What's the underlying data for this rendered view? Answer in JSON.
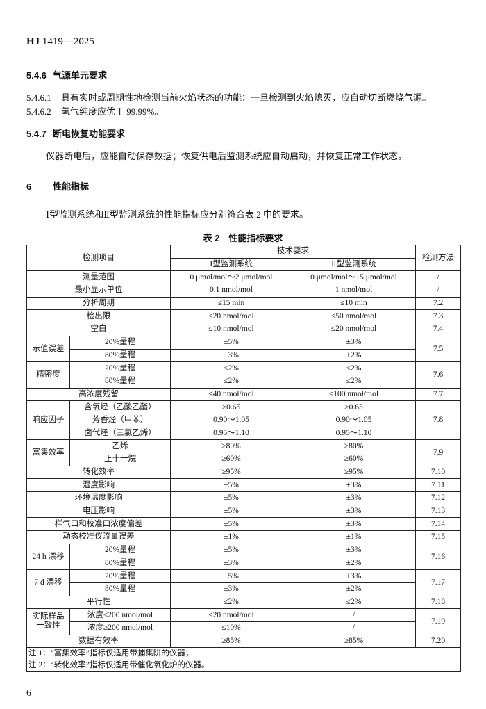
{
  "header": {
    "code": "HJ",
    "number": "1419—2025"
  },
  "blocks": [
    {
      "number": "5.4.6",
      "title": "气源单元要求"
    },
    {
      "number": "5.4.6.1",
      "text": "具有实时或周期性地检测当前火焰状态的功能：一旦检测到火焰熄灭，应自动切断燃烧气源。"
    },
    {
      "number": "5.4.6.2",
      "text": "氢气纯度应优于 99.99%。"
    },
    {
      "number": "5.4.7",
      "title": "断电恢复功能要求"
    },
    {
      "text": "仪器断电后，应能自动保存数据；恢复供电后监测系统应自动启动，并恢复正常工作状态。"
    },
    {
      "number": "6",
      "title": "性能指标"
    },
    {
      "text": "Ⅰ型监测系统和Ⅱ型监测系统的性能指标应分别符合表 2 中的要求。"
    }
  ],
  "table": {
    "caption": "表 2　性能指标要求",
    "headers": {
      "item": "检测项目",
      "requirements": "技术要求",
      "type1": "Ⅰ型监测系统",
      "type2": "Ⅱ型监测系统",
      "method": "检测方法"
    },
    "rows": [
      {
        "item": "测量范围",
        "type1": "0 μmol/mol～2 μmol/mol",
        "type2": "0 μmol/mol～15 μmol/mol",
        "method": "/"
      },
      {
        "item": "最小显示单位",
        "type1": "0.1 nmol/mol",
        "type2": "1 nmol/mol",
        "method": "/"
      },
      {
        "item": "分析周期",
        "type1": "≤15 min",
        "type2": "≤10 min",
        "method": "7.2"
      },
      {
        "item": "检出限",
        "type1": "≤20 nmol/mol",
        "type2": "≤50 nmol/mol",
        "method": "7.3"
      },
      {
        "item": "空白",
        "type1": "≤10 nmol/mol",
        "type2": "≤20 nmol/mol",
        "method": "7.4"
      },
      {
        "group": "示值误差",
        "method": "7.5",
        "items": [
          {
            "item": "20%量程",
            "type1": "±5%",
            "type2": "±3%"
          },
          {
            "item": "80%量程",
            "type1": "±3%",
            "type2": "±2%"
          }
        ]
      },
      {
        "group": "精密度",
        "method": "7.6",
        "items": [
          {
            "item": "20%量程",
            "type1": "≤2%",
            "type2": "≤2%"
          },
          {
            "item": "80%量程",
            "type1": "≤2%",
            "type2": "≤2%"
          }
        ]
      },
      {
        "item": "高浓度残留",
        "type1": "≤40 nmol/mol",
        "type2": "≤100 nmol/mol",
        "method": "7.7"
      },
      {
        "group": "响应因子",
        "method": "7.8",
        "items": [
          {
            "item": "含氧烃（乙酸乙酯）",
            "type1": "≥0.65",
            "type2": "≥0.65"
          },
          {
            "item": "芳香烃（甲苯）",
            "type1": "0.90～1.05",
            "type2": "0.90～1.05"
          },
          {
            "item": "卤代烃（三氯乙烯）",
            "type1": "0.95～1.10",
            "type2": "0.95～1.10"
          }
        ]
      },
      {
        "group": "富集效率",
        "method": "7.9",
        "items": [
          {
            "item": "乙烯",
            "type1": "≥80%",
            "type2": "≥80%"
          },
          {
            "item": "正十一烷",
            "type1": "≥60%",
            "type2": "≥60%"
          }
        ]
      },
      {
        "item": "转化效率",
        "type1": "≥95%",
        "type2": "≥95%",
        "method": "7.10"
      },
      {
        "item": "湿度影响",
        "type1": "±5%",
        "type2": "±3%",
        "method": "7.11"
      },
      {
        "item": "环境温度影响",
        "type1": "±5%",
        "type2": "±3%",
        "method": "7.12"
      },
      {
        "item": "电压影响",
        "type1": "±5%",
        "type2": "±3%",
        "method": "7.13"
      },
      {
        "item": "样气口和校准口浓度偏差",
        "type1": "±5%",
        "type2": "±3%",
        "method": "7.14"
      },
      {
        "item": "动态校准仪流量误差",
        "type1": "±1%",
        "type2": "±1%",
        "method": "7.15"
      },
      {
        "group": "24 h 漂移",
        "method": "7.16",
        "items": [
          {
            "item": "20%量程",
            "type1": "±5%",
            "type2": "±3%"
          },
          {
            "item": "80%量程",
            "type1": "±3%",
            "type2": "±2%"
          }
        ]
      },
      {
        "group": "7 d 漂移",
        "method": "7.17",
        "items": [
          {
            "item": "20%量程",
            "type1": "±5%",
            "type2": "±3%"
          },
          {
            "item": "80%量程",
            "type1": "±3%",
            "type2": "±2%"
          }
        ]
      },
      {
        "item": "平行性",
        "type1": "≤2%",
        "type2": "≤2%",
        "method": "7.18"
      },
      {
        "group": "实际样品一致性",
        "method": "7.19",
        "items": [
          {
            "item": "浓度≤200 nmol/mol",
            "type1": "≤20 nmol/mol",
            "type2": "/"
          },
          {
            "item": "浓度≥200 nmol/mol",
            "type1": "≤10%",
            "type2": "/"
          }
        ]
      },
      {
        "item": "数据有效率",
        "type1": "≥85%",
        "type2": "≥85%",
        "method": "7.20"
      }
    ],
    "notes": [
      "注 1：“富集效率”指标仅适用带捕集阱的仪器；",
      "注 2：“转化效率”指标仅适用带催化氧化炉的仪器。"
    ]
  },
  "page_number": "6"
}
